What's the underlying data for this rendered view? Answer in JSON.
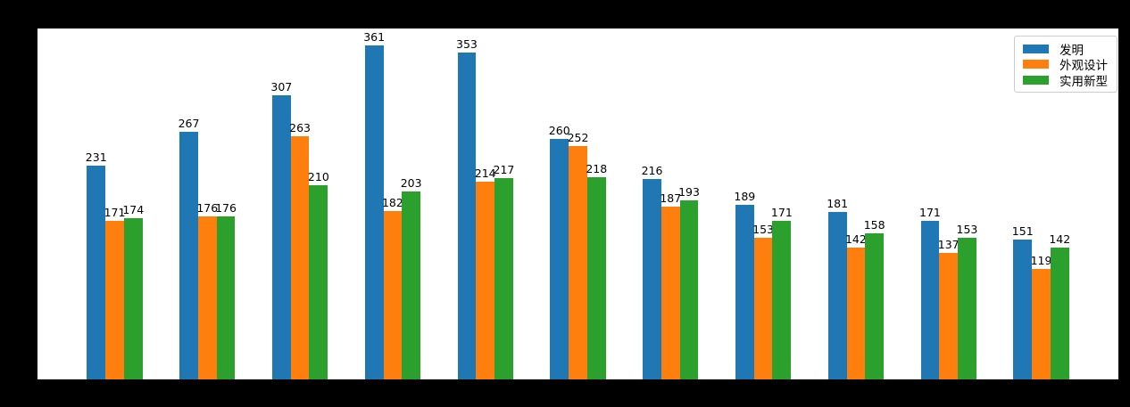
{
  "figure": {
    "background_color": "#000000",
    "plot_background_color": "#ffffff"
  },
  "legend": {
    "position": "upper right"
  },
  "chart_data": {
    "type": "bar",
    "title": "",
    "xlabel": "",
    "ylabel": "",
    "grid": false,
    "ylim": [
      0,
      379
    ],
    "legend_position": "upper right",
    "bar_value_labels_shown": true,
    "x_tick_labels_visible": false,
    "y_tick_labels_visible": false,
    "group_count": 11,
    "series": [
      {
        "name": "发明",
        "color": "#1f77b4",
        "values": [
          231,
          267,
          307,
          361,
          353,
          260,
          216,
          189,
          181,
          171,
          151
        ]
      },
      {
        "name": "外观设计",
        "color": "#ff7f0e",
        "values": [
          171,
          176,
          263,
          182,
          214,
          252,
          187,
          153,
          142,
          137,
          119
        ]
      },
      {
        "name": "实用新型",
        "color": "#2ca02c",
        "values": [
          174,
          176,
          210,
          203,
          217,
          218,
          193,
          171,
          158,
          153,
          142
        ]
      }
    ]
  }
}
